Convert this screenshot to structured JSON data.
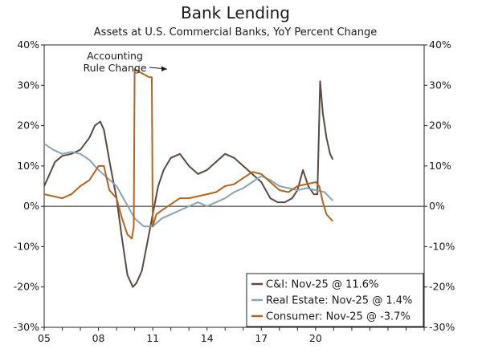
{
  "chart_data": {
    "type": "line",
    "title": "Bank Lending",
    "subtitle": "Assets at U.S. Commercial Banks, YoY Percent Change",
    "ylim": [
      -30,
      40
    ],
    "y_ticks": [
      40,
      30,
      20,
      10,
      0,
      -10,
      -20,
      -30
    ],
    "y_tick_labels": [
      "40%",
      "30%",
      "20%",
      "10%",
      "0%",
      "-10%",
      "-20%",
      "-30%"
    ],
    "xlim": [
      2005.0,
      2026.0
    ],
    "x_ticks": [
      2005,
      2008,
      2011,
      2014,
      2017,
      2020
    ],
    "x_tick_labels": [
      "05",
      "08",
      "11",
      "14",
      "17",
      "20"
    ],
    "grid": false,
    "legend_position": "bottom-right",
    "annotation": {
      "lines": [
        "Accounting",
        "Rule Change"
      ],
      "x": 2010.1,
      "y": 34
    },
    "series": [
      {
        "name": "C&I: Nov-25 @ 11.6%",
        "color": "#5a4a3f",
        "x": [
          2005.0,
          2005.3,
          2005.6,
          2006.0,
          2006.5,
          2007.0,
          2007.5,
          2007.8,
          2008.1,
          2008.3,
          2008.5,
          2008.7,
          2009.0,
          2009.3,
          2009.6,
          2009.9,
          2010.1,
          2010.4,
          2010.7,
          2011.0,
          2011.3,
          2011.6,
          2012.0,
          2012.5,
          2013.0,
          2013.5,
          2014.0,
          2014.5,
          2015.0,
          2015.5,
          2016.0,
          2016.5,
          2017.0,
          2017.5,
          2017.9,
          2018.3,
          2018.7,
          2019.0,
          2019.3,
          2019.6,
          2019.9,
          2020.1,
          2020.25,
          2020.4,
          2020.6,
          2020.8,
          2020.95
        ],
        "y": [
          5,
          8,
          11,
          12.5,
          13,
          14,
          17,
          20,
          21,
          19,
          14,
          9,
          2,
          -8,
          -17,
          -20,
          -19,
          -16,
          -9,
          -2,
          5,
          9,
          12,
          13,
          10,
          8,
          9,
          11,
          13,
          12,
          10,
          8,
          6,
          2,
          1,
          1,
          2,
          4,
          9,
          5,
          3,
          3,
          31,
          23,
          17,
          13,
          11.6
        ]
      },
      {
        "name": "Real Estate: Nov-25 @ 1.4%",
        "color": "#8aa4b3",
        "x": [
          2005.0,
          2005.5,
          2006.0,
          2006.5,
          2007.0,
          2007.5,
          2008.0,
          2008.5,
          2009.0,
          2009.5,
          2010.0,
          2010.5,
          2011.0,
          2011.5,
          2012.0,
          2012.5,
          2013.0,
          2013.5,
          2014.0,
          2014.5,
          2015.0,
          2015.5,
          2016.0,
          2016.5,
          2017.0,
          2017.5,
          2018.0,
          2018.5,
          2019.0,
          2019.5,
          2020.0,
          2020.5,
          2020.95
        ],
        "y": [
          15.5,
          14,
          13,
          13.5,
          13,
          11.5,
          9,
          7,
          5,
          1,
          -3,
          -5,
          -5,
          -3,
          -2,
          -1,
          0,
          1,
          0,
          1,
          2,
          3.5,
          4.5,
          6,
          7.5,
          6.5,
          5,
          4.5,
          4,
          4.5,
          4,
          3.5,
          1.4
        ]
      },
      {
        "name": "Consumer: Nov-25 @ -3.7%",
        "color": "#b5651d",
        "x": [
          2005.0,
          2005.5,
          2006.0,
          2006.5,
          2007.0,
          2007.5,
          2008.0,
          2008.3,
          2008.6,
          2009.0,
          2009.3,
          2009.6,
          2009.85,
          2009.95,
          2010.0,
          2010.4,
          2010.8,
          2010.95,
          2011.0,
          2011.2,
          2011.5,
          2012.0,
          2012.5,
          2013.0,
          2013.5,
          2014.0,
          2014.5,
          2015.0,
          2015.5,
          2016.0,
          2016.5,
          2017.0,
          2017.5,
          2018.0,
          2018.5,
          2019.0,
          2019.5,
          2020.0,
          2020.2,
          2020.4,
          2020.6,
          2020.8,
          2020.95
        ],
        "y": [
          3,
          2.5,
          2,
          3,
          5,
          6.5,
          10,
          10,
          4,
          2,
          -3,
          -7,
          -8,
          -5,
          34,
          33,
          32,
          32,
          -5,
          -2,
          -1,
          0.5,
          2,
          2,
          2.5,
          3,
          3.5,
          5,
          5.5,
          7,
          8.5,
          8,
          6,
          4,
          3.5,
          5,
          5.5,
          6,
          5,
          1,
          -2,
          -3,
          -3.7
        ]
      }
    ]
  }
}
